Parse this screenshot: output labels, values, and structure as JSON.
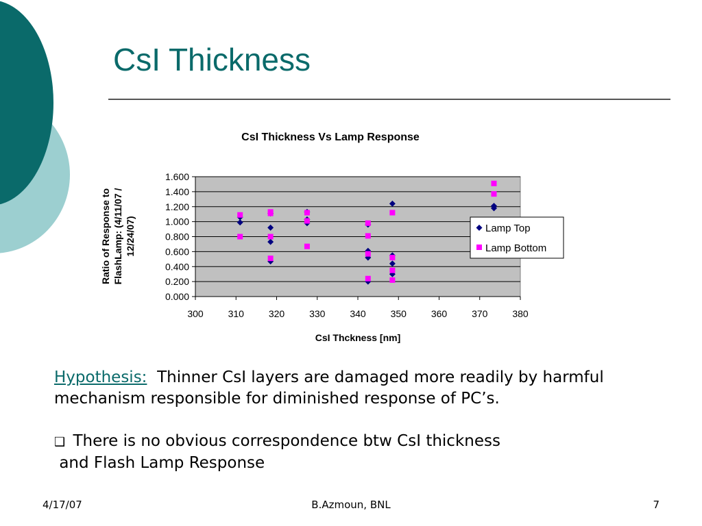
{
  "slide": {
    "title": "CsI Thickness",
    "hypothesis_label": "Hypothesis:",
    "hypothesis_text": "Thinner CsI layers are damaged more readily by harmful mechanism responsible for diminished response of PC’s.",
    "bullet_glyph": "❑",
    "bullet_line1": "There is no obvious correspondence btw CsI thickness",
    "bullet_line2": "and Flash Lamp Response",
    "footer_date": "4/17/07",
    "footer_author": "B.Azmoun, BNL",
    "footer_page": "7"
  },
  "colors": {
    "teal_dark": "#0a6a6a",
    "teal_light": "#9ccfd0",
    "plot_bg": "#c0c0c0",
    "lamp_top": "#000080",
    "lamp_bottom": "#ff00ff"
  },
  "chart_data": {
    "type": "scatter",
    "title": "CsI Thickness Vs Lamp Response",
    "xlabel": "CsI Thckness [nm]",
    "ylabel_lines": [
      "Ratio of Response to",
      "FlashLamp: (4/11/07 /",
      "12/24/07)"
    ],
    "xlim": [
      300,
      380
    ],
    "ylim": [
      0,
      1.6
    ],
    "xticks": [
      "300",
      "310",
      "320",
      "330",
      "340",
      "350",
      "360",
      "370",
      "380"
    ],
    "yticks": [
      "0.000",
      "0.200",
      "0.400",
      "0.600",
      "0.800",
      "1.000",
      "1.200",
      "1.400",
      "1.600"
    ],
    "grid": true,
    "legend": "right",
    "series": [
      {
        "name": "Lamp Top",
        "marker": "diamond",
        "points": [
          [
            311,
            1.06
          ],
          [
            311,
            0.99
          ],
          [
            318.5,
            1.11
          ],
          [
            318.5,
            0.92
          ],
          [
            318.5,
            0.73
          ],
          [
            318.5,
            0.47
          ],
          [
            327.5,
            1.13
          ],
          [
            327.5,
            1.03
          ],
          [
            327.5,
            0.98
          ],
          [
            342.5,
            0.96
          ],
          [
            342.5,
            0.61
          ],
          [
            342.5,
            0.52
          ],
          [
            342.5,
            0.2
          ],
          [
            348.5,
            1.24
          ],
          [
            348.5,
            0.55
          ],
          [
            348.5,
            0.44
          ],
          [
            348.5,
            0.3
          ],
          [
            373.5,
            1.21
          ],
          [
            373.5,
            1.18
          ]
        ]
      },
      {
        "name": "Lamp Bottom",
        "marker": "square",
        "points": [
          [
            311,
            1.09
          ],
          [
            311,
            0.8
          ],
          [
            318.5,
            1.13
          ],
          [
            318.5,
            1.11
          ],
          [
            318.5,
            0.8
          ],
          [
            318.5,
            0.51
          ],
          [
            327.5,
            1.12
          ],
          [
            327.5,
            1.01
          ],
          [
            327.5,
            0.67
          ],
          [
            342.5,
            0.98
          ],
          [
            342.5,
            0.81
          ],
          [
            342.5,
            0.57
          ],
          [
            342.5,
            0.24
          ],
          [
            348.5,
            1.12
          ],
          [
            348.5,
            0.52
          ],
          [
            348.5,
            0.35
          ],
          [
            348.5,
            0.22
          ],
          [
            373.5,
            1.51
          ],
          [
            373.5,
            1.37
          ]
        ]
      }
    ]
  }
}
